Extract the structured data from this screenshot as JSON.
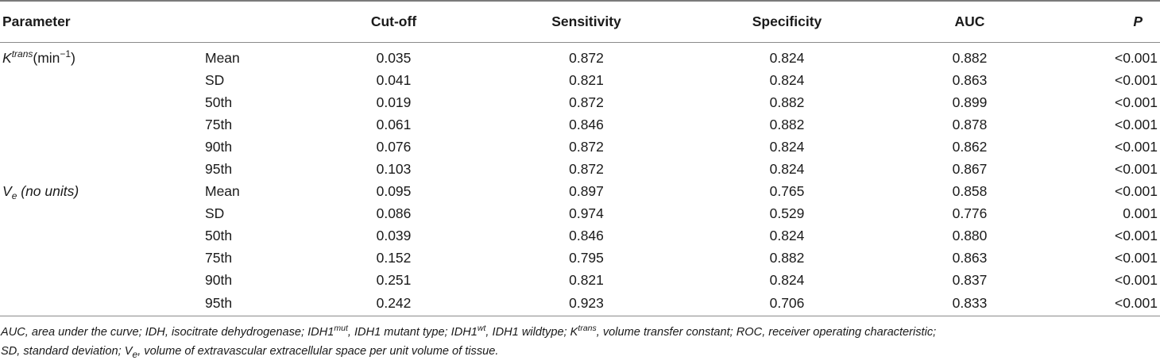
{
  "table": {
    "headers": {
      "parameter": "Parameter",
      "cutoff": "Cut-off",
      "sensitivity": "Sensitivity",
      "specificity": "Specificity",
      "auc": "AUC",
      "p": "P"
    },
    "groups": [
      {
        "label_main": "K",
        "label_sup": "trans",
        "label_unit": "(min",
        "label_unit_sup": "−1",
        "label_close": ")",
        "rows": [
          {
            "stat": "Mean",
            "cutoff": "0.035",
            "sensitivity": "0.872",
            "specificity": "0.824",
            "auc": "0.882",
            "p": "<0.001"
          },
          {
            "stat": "SD",
            "cutoff": "0.041",
            "sensitivity": "0.821",
            "specificity": "0.824",
            "auc": "0.863",
            "p": "<0.001"
          },
          {
            "stat": "50th",
            "cutoff": "0.019",
            "sensitivity": "0.872",
            "specificity": "0.882",
            "auc": "0.899",
            "p": "<0.001"
          },
          {
            "stat": "75th",
            "cutoff": "0.061",
            "sensitivity": "0.846",
            "specificity": "0.882",
            "auc": "0.878",
            "p": "<0.001"
          },
          {
            "stat": "90th",
            "cutoff": "0.076",
            "sensitivity": "0.872",
            "specificity": "0.824",
            "auc": "0.862",
            "p": "<0.001"
          },
          {
            "stat": "95th",
            "cutoff": "0.103",
            "sensitivity": "0.872",
            "specificity": "0.824",
            "auc": "0.867",
            "p": "<0.001"
          }
        ]
      },
      {
        "label_main": "V",
        "label_sub": "e",
        "label_rest": " (no units)",
        "rows": [
          {
            "stat": "Mean",
            "cutoff": "0.095",
            "sensitivity": "0.897",
            "specificity": "0.765",
            "auc": "0.858",
            "p": "<0.001"
          },
          {
            "stat": "SD",
            "cutoff": "0.086",
            "sensitivity": "0.974",
            "specificity": "0.529",
            "auc": "0.776",
            "p": "0.001"
          },
          {
            "stat": "50th",
            "cutoff": "0.039",
            "sensitivity": "0.846",
            "specificity": "0.824",
            "auc": "0.880",
            "p": "<0.001"
          },
          {
            "stat": "75th",
            "cutoff": "0.152",
            "sensitivity": "0.795",
            "specificity": "0.882",
            "auc": "0.863",
            "p": "<0.001"
          },
          {
            "stat": "90th",
            "cutoff": "0.251",
            "sensitivity": "0.821",
            "specificity": "0.824",
            "auc": "0.837",
            "p": "<0.001"
          },
          {
            "stat": "95th",
            "cutoff": "0.242",
            "sensitivity": "0.923",
            "specificity": "0.706",
            "auc": "0.833",
            "p": "<0.001"
          }
        ]
      }
    ]
  },
  "footnote": {
    "p1": "AUC, area under the curve; IDH, isocitrate dehydrogenase; IDH1",
    "s1": "mut",
    "p2": ", IDH1 mutant type; IDH1",
    "s2": "wt",
    "p3": ", IDH1 wildtype; K",
    "s3": "trans",
    "p4": ", volume transfer constant; ROC, receiver operating characteristic;",
    "p5": "SD, standard deviation; V",
    "s5": "e",
    "p6": ", volume of extravascular extracellular space per unit volume of tissue."
  }
}
